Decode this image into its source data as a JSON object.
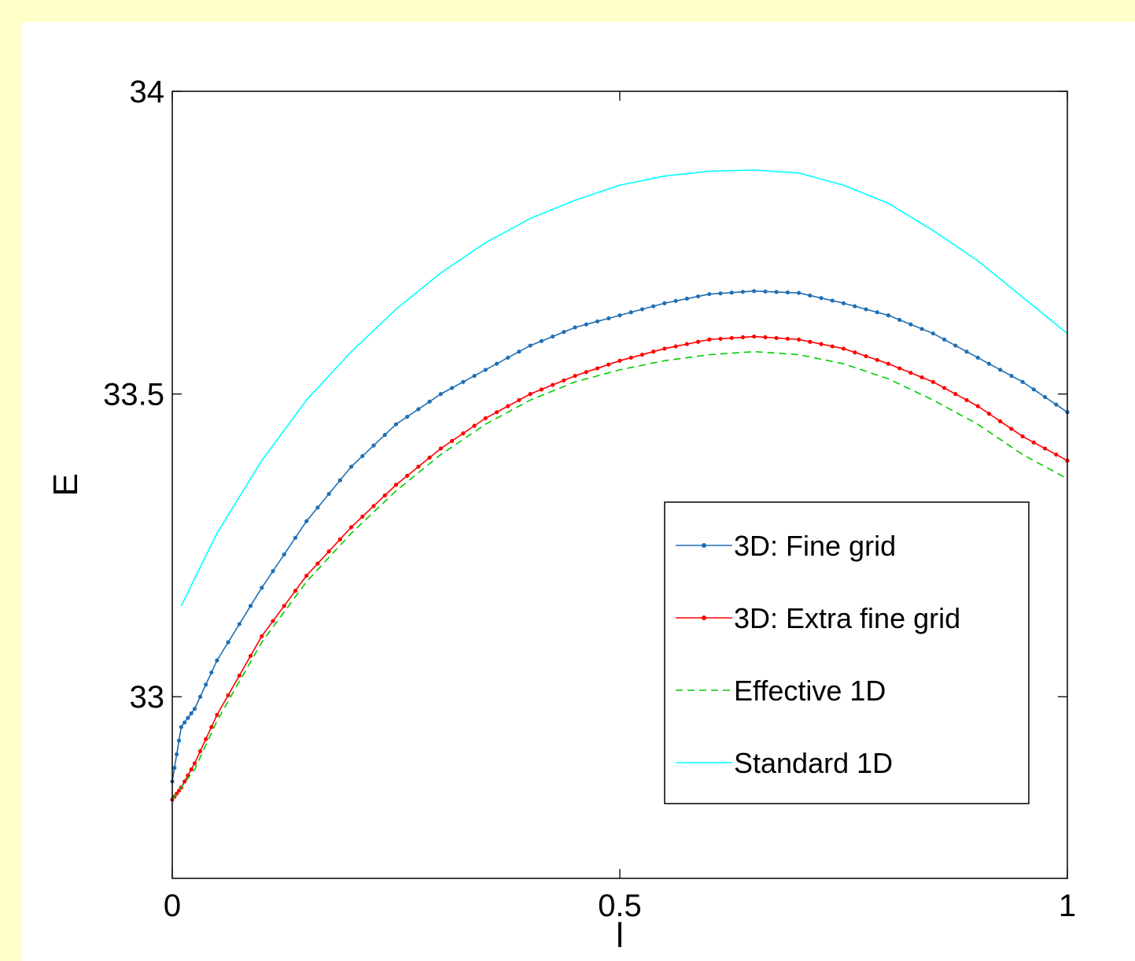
{
  "chart_data": {
    "type": "line",
    "title": "",
    "xlabel": "l",
    "ylabel": "E",
    "xlim": [
      0,
      1
    ],
    "ylim": [
      32.7,
      34
    ],
    "xticks": [
      "0",
      "0.5",
      "1"
    ],
    "yticks": [
      "33",
      "33.5",
      "34"
    ],
    "grid": false,
    "legend_position": "lower-right",
    "series": [
      {
        "name": "3D: Fine grid",
        "color": "#1f6fb4",
        "style": "solid-dot-markers",
        "x": [
          0,
          0.01,
          0.025,
          0.05,
          0.1,
          0.15,
          0.2,
          0.25,
          0.3,
          0.35,
          0.4,
          0.45,
          0.5,
          0.55,
          0.6,
          0.65,
          0.7,
          0.75,
          0.8,
          0.85,
          0.9,
          0.95,
          1.0
        ],
        "values": [
          32.86,
          32.95,
          32.98,
          33.06,
          33.18,
          33.29,
          33.38,
          33.45,
          33.5,
          33.54,
          33.58,
          33.61,
          33.63,
          33.65,
          33.665,
          33.67,
          33.667,
          33.65,
          33.63,
          33.6,
          33.56,
          33.52,
          33.47
        ]
      },
      {
        "name": "3D: Extra fine grid",
        "color": "#ff0000",
        "style": "solid-dot-markers",
        "x": [
          0,
          0.01,
          0.025,
          0.05,
          0.1,
          0.15,
          0.2,
          0.25,
          0.3,
          0.35,
          0.4,
          0.45,
          0.5,
          0.55,
          0.6,
          0.65,
          0.7,
          0.75,
          0.8,
          0.85,
          0.9,
          0.95,
          1.0
        ],
        "values": [
          32.83,
          32.85,
          32.89,
          32.97,
          33.1,
          33.2,
          33.28,
          33.35,
          33.41,
          33.46,
          33.5,
          33.53,
          33.555,
          33.575,
          33.59,
          33.595,
          33.59,
          33.575,
          33.55,
          33.52,
          33.48,
          33.43,
          33.39
        ]
      },
      {
        "name": "Effective 1D",
        "color": "#00cc00",
        "style": "dashed",
        "x": [
          0,
          0.01,
          0.025,
          0.05,
          0.1,
          0.15,
          0.2,
          0.25,
          0.3,
          0.35,
          0.4,
          0.45,
          0.5,
          0.55,
          0.6,
          0.65,
          0.7,
          0.75,
          0.8,
          0.85,
          0.9,
          0.95,
          1.0
        ],
        "values": [
          32.83,
          32.85,
          32.88,
          32.96,
          33.09,
          33.19,
          33.27,
          33.34,
          33.4,
          33.45,
          33.49,
          33.52,
          33.54,
          33.555,
          33.565,
          33.57,
          33.565,
          33.55,
          33.525,
          33.49,
          33.45,
          33.4,
          33.36
        ]
      },
      {
        "name": "Standard 1D",
        "color": "#00ffff",
        "style": "solid",
        "x": [
          0.01,
          0.05,
          0.1,
          0.15,
          0.2,
          0.25,
          0.3,
          0.35,
          0.4,
          0.45,
          0.5,
          0.55,
          0.6,
          0.65,
          0.7,
          0.75,
          0.8,
          0.85,
          0.9,
          0.95,
          1.0
        ],
        "values": [
          33.15,
          33.27,
          33.39,
          33.49,
          33.57,
          33.64,
          33.7,
          33.75,
          33.79,
          33.82,
          33.845,
          33.86,
          33.868,
          33.87,
          33.865,
          33.845,
          33.815,
          33.77,
          33.72,
          33.66,
          33.6
        ]
      }
    ]
  }
}
